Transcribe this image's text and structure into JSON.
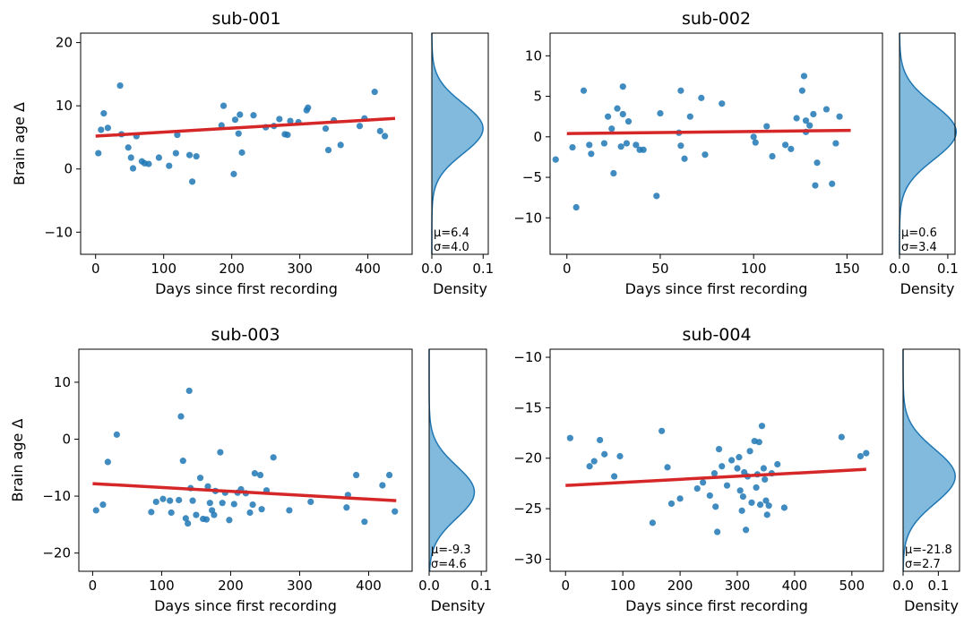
{
  "chart_data": [
    {
      "type": "scatter",
      "title": "sub-001",
      "xlabel": "Days since first recording",
      "ylabel": "Brain age Δ",
      "xlim": [
        -22,
        465
      ],
      "ylim": [
        -13.5,
        21.5
      ],
      "xticks": [
        0,
        100,
        200,
        300,
        400
      ],
      "yticks": [
        -10,
        0,
        10,
        20
      ],
      "points": [
        [
          4,
          2.5
        ],
        [
          8,
          6.2
        ],
        [
          12,
          8.8
        ],
        [
          18,
          6.5
        ],
        [
          36,
          13.2
        ],
        [
          38,
          5.5
        ],
        [
          48,
          3.4
        ],
        [
          52,
          1.8
        ],
        [
          55,
          0.1
        ],
        [
          60,
          5.2
        ],
        [
          68,
          1.2
        ],
        [
          72,
          0.9
        ],
        [
          78,
          0.8
        ],
        [
          93,
          1.8
        ],
        [
          108,
          0.5
        ],
        [
          118,
          2.5
        ],
        [
          120,
          5.4
        ],
        [
          138,
          2.2
        ],
        [
          142,
          -2.0
        ],
        [
          148,
          2.0
        ],
        [
          185,
          6.9
        ],
        [
          188,
          10.0
        ],
        [
          203,
          -0.8
        ],
        [
          205,
          7.8
        ],
        [
          210,
          5.6
        ],
        [
          212,
          8.6
        ],
        [
          215,
          2.6
        ],
        [
          232,
          8.5
        ],
        [
          250,
          6.6
        ],
        [
          262,
          6.8
        ],
        [
          270,
          7.9
        ],
        [
          278,
          5.5
        ],
        [
          282,
          5.4
        ],
        [
          286,
          7.6
        ],
        [
          298,
          7.4
        ],
        [
          310,
          9.3
        ],
        [
          312,
          9.7
        ],
        [
          338,
          6.4
        ],
        [
          342,
          3.0
        ],
        [
          350,
          7.7
        ],
        [
          360,
          3.8
        ],
        [
          388,
          6.8
        ],
        [
          395,
          8.0
        ],
        [
          410,
          12.2
        ],
        [
          418,
          6.0
        ],
        [
          425,
          5.2
        ]
      ],
      "fit": [
        [
          0,
          5.2
        ],
        [
          440,
          8.0
        ]
      ],
      "density": {
        "mu": 6.4,
        "sigma": 4.0,
        "label_mu": "μ=6.4",
        "label_sigma": "σ=4.0",
        "xlim": [
          0,
          0.11
        ],
        "xticks": [
          "0.0",
          "0.1"
        ],
        "xlabel": "Density"
      }
    },
    {
      "type": "scatter",
      "title": "sub-002",
      "xlabel": "Days since first recording",
      "ylabel": "",
      "xlim": [
        -9,
        169
      ],
      "ylim": [
        -14.5,
        12.8
      ],
      "xticks": [
        0,
        50,
        100,
        150
      ],
      "yticks": [
        -10,
        -5,
        0,
        5,
        10
      ],
      "points": [
        [
          -6,
          -2.8
        ],
        [
          3,
          -1.3
        ],
        [
          5,
          -8.7
        ],
        [
          9,
          5.7
        ],
        [
          12,
          -1.0
        ],
        [
          13,
          -2.1
        ],
        [
          20,
          -0.8
        ],
        [
          22,
          2.5
        ],
        [
          25,
          -4.5
        ],
        [
          24,
          1.0
        ],
        [
          27,
          3.5
        ],
        [
          29,
          -1.2
        ],
        [
          30,
          6.2
        ],
        [
          30,
          2.8
        ],
        [
          33,
          1.9
        ],
        [
          32,
          -0.8
        ],
        [
          37,
          -1.0
        ],
        [
          39,
          -1.6
        ],
        [
          41,
          -1.6
        ],
        [
          48,
          -7.3
        ],
        [
          50,
          2.9
        ],
        [
          60,
          0.5
        ],
        [
          61,
          5.7
        ],
        [
          61,
          -1.1
        ],
        [
          63,
          -2.7
        ],
        [
          66,
          2.5
        ],
        [
          72,
          4.8
        ],
        [
          74,
          -2.2
        ],
        [
          83,
          4.1
        ],
        [
          100,
          0.0
        ],
        [
          101,
          -0.7
        ],
        [
          107,
          1.3
        ],
        [
          110,
          -2.4
        ],
        [
          117,
          -1.0
        ],
        [
          120,
          -1.5
        ],
        [
          123,
          2.3
        ],
        [
          126,
          5.7
        ],
        [
          128,
          2.0
        ],
        [
          132,
          2.8
        ],
        [
          127,
          7.5
        ],
        [
          128,
          0.6
        ],
        [
          130,
          1.4
        ],
        [
          133,
          -6.0
        ],
        [
          134,
          -3.2
        ],
        [
          139,
          3.4
        ],
        [
          142,
          -5.8
        ],
        [
          144,
          -0.8
        ],
        [
          146,
          2.5
        ]
      ],
      "fit": [
        [
          0,
          0.4
        ],
        [
          152,
          0.8
        ]
      ],
      "density": {
        "mu": 0.6,
        "sigma": 3.4,
        "label_mu": "μ=0.6",
        "label_sigma": "σ=3.4",
        "xlim": [
          0,
          0.115
        ],
        "xticks": [
          "0.0",
          "0.1"
        ],
        "xlabel": "Density"
      }
    },
    {
      "type": "scatter",
      "title": "sub-003",
      "xlabel": "Days since first recording",
      "ylabel": "Brain age Δ",
      "xlim": [
        -20,
        463
      ],
      "ylim": [
        -23.2,
        15.8
      ],
      "xticks": [
        0,
        100,
        200,
        300,
        400
      ],
      "yticks": [
        -20,
        -10,
        0,
        10
      ],
      "points": [
        [
          5,
          -12.5
        ],
        [
          15,
          -11.5
        ],
        [
          22,
          -4.0
        ],
        [
          35,
          0.8
        ],
        [
          85,
          -12.8
        ],
        [
          92,
          -11.0
        ],
        [
          102,
          -10.5
        ],
        [
          112,
          -10.8
        ],
        [
          114,
          -12.9
        ],
        [
          125,
          -10.7
        ],
        [
          128,
          4.0
        ],
        [
          131,
          -3.8
        ],
        [
          135,
          -13.9
        ],
        [
          138,
          -14.8
        ],
        [
          140,
          8.5
        ],
        [
          142,
          -8.6
        ],
        [
          145,
          -10.8
        ],
        [
          150,
          -13.3
        ],
        [
          156,
          -6.8
        ],
        [
          160,
          -14.0
        ],
        [
          165,
          -14.1
        ],
        [
          167,
          -8.3
        ],
        [
          170,
          -11.2
        ],
        [
          173,
          -12.5
        ],
        [
          176,
          -13.3
        ],
        [
          178,
          -9.1
        ],
        [
          185,
          -2.3
        ],
        [
          188,
          -11.2
        ],
        [
          192,
          -9.4
        ],
        [
          198,
          -14.2
        ],
        [
          205,
          -11.4
        ],
        [
          210,
          -9.4
        ],
        [
          215,
          -8.8
        ],
        [
          222,
          -9.5
        ],
        [
          228,
          -12.9
        ],
        [
          232,
          -11.5
        ],
        [
          235,
          -6.0
        ],
        [
          245,
          -12.3
        ],
        [
          243,
          -6.3
        ],
        [
          252,
          -9.0
        ],
        [
          262,
          -3.2
        ],
        [
          285,
          -12.5
        ],
        [
          316,
          -11.0
        ],
        [
          368,
          -12.0
        ],
        [
          370,
          -9.8
        ],
        [
          382,
          -6.3
        ],
        [
          394,
          -14.5
        ],
        [
          420,
          -8.1
        ],
        [
          430,
          -6.3
        ],
        [
          438,
          -12.7
        ]
      ],
      "fit": [
        [
          0,
          -7.8
        ],
        [
          440,
          -10.8
        ]
      ],
      "density": {
        "mu": -9.3,
        "sigma": 4.6,
        "label_mu": "μ=-9.3",
        "label_sigma": "σ=4.6",
        "xlim": [
          0,
          0.11
        ],
        "xticks": [
          "0.0",
          "0.1"
        ],
        "xlabel": "Density"
      }
    },
    {
      "type": "scatter",
      "title": "sub-004",
      "xlabel": "Days since first recording",
      "ylabel": "",
      "xlim": [
        -27,
        555
      ],
      "ylim": [
        -31.2,
        -9.2
      ],
      "xticks": [
        0,
        100,
        200,
        300,
        400,
        500
      ],
      "yticks": [
        -30,
        -25,
        -20,
        -15,
        -10
      ],
      "points": [
        [
          8,
          -18.0
        ],
        [
          42,
          -20.8
        ],
        [
          50,
          -20.3
        ],
        [
          60,
          -18.2
        ],
        [
          68,
          -19.6
        ],
        [
          85,
          -21.8
        ],
        [
          95,
          -19.8
        ],
        [
          152,
          -26.4
        ],
        [
          168,
          -17.3
        ],
        [
          178,
          -20.9
        ],
        [
          185,
          -24.5
        ],
        [
          200,
          -24.0
        ],
        [
          230,
          -23.0
        ],
        [
          240,
          -22.4
        ],
        [
          252,
          -23.7
        ],
        [
          260,
          -21.5
        ],
        [
          262,
          -24.8
        ],
        [
          265,
          -27.3
        ],
        [
          268,
          -19.1
        ],
        [
          273,
          -20.8
        ],
        [
          282,
          -22.7
        ],
        [
          290,
          -20.2
        ],
        [
          300,
          -21.0
        ],
        [
          303,
          -19.9
        ],
        [
          305,
          -23.2
        ],
        [
          308,
          -25.2
        ],
        [
          310,
          -23.8
        ],
        [
          312,
          -21.4
        ],
        [
          315,
          -27.1
        ],
        [
          318,
          -21.8
        ],
        [
          322,
          -19.3
        ],
        [
          325,
          -24.4
        ],
        [
          330,
          -18.3
        ],
        [
          333,
          -22.9
        ],
        [
          335,
          -21.6
        ],
        [
          338,
          -18.4
        ],
        [
          340,
          -24.6
        ],
        [
          343,
          -16.8
        ],
        [
          346,
          -21.0
        ],
        [
          348,
          -22.1
        ],
        [
          350,
          -24.2
        ],
        [
          352,
          -25.6
        ],
        [
          355,
          -24.7
        ],
        [
          360,
          -21.5
        ],
        [
          370,
          -20.6
        ],
        [
          382,
          -24.9
        ],
        [
          482,
          -17.9
        ],
        [
          515,
          -19.8
        ],
        [
          525,
          -19.5
        ]
      ],
      "fit": [
        [
          0,
          -22.7
        ],
        [
          525,
          -21.1
        ]
      ],
      "density": {
        "mu": -21.8,
        "sigma": 2.7,
        "label_mu": "μ=-21.8",
        "label_sigma": "σ=2.7",
        "xlim": [
          0,
          0.16
        ],
        "xticks": [
          "0.0",
          "0.1"
        ],
        "xlabel": "Density"
      }
    }
  ],
  "colors": {
    "points": "#1f77b4",
    "fit": "#d62728",
    "density_fill": "#6baed6",
    "density_line": "#1f77b4"
  }
}
